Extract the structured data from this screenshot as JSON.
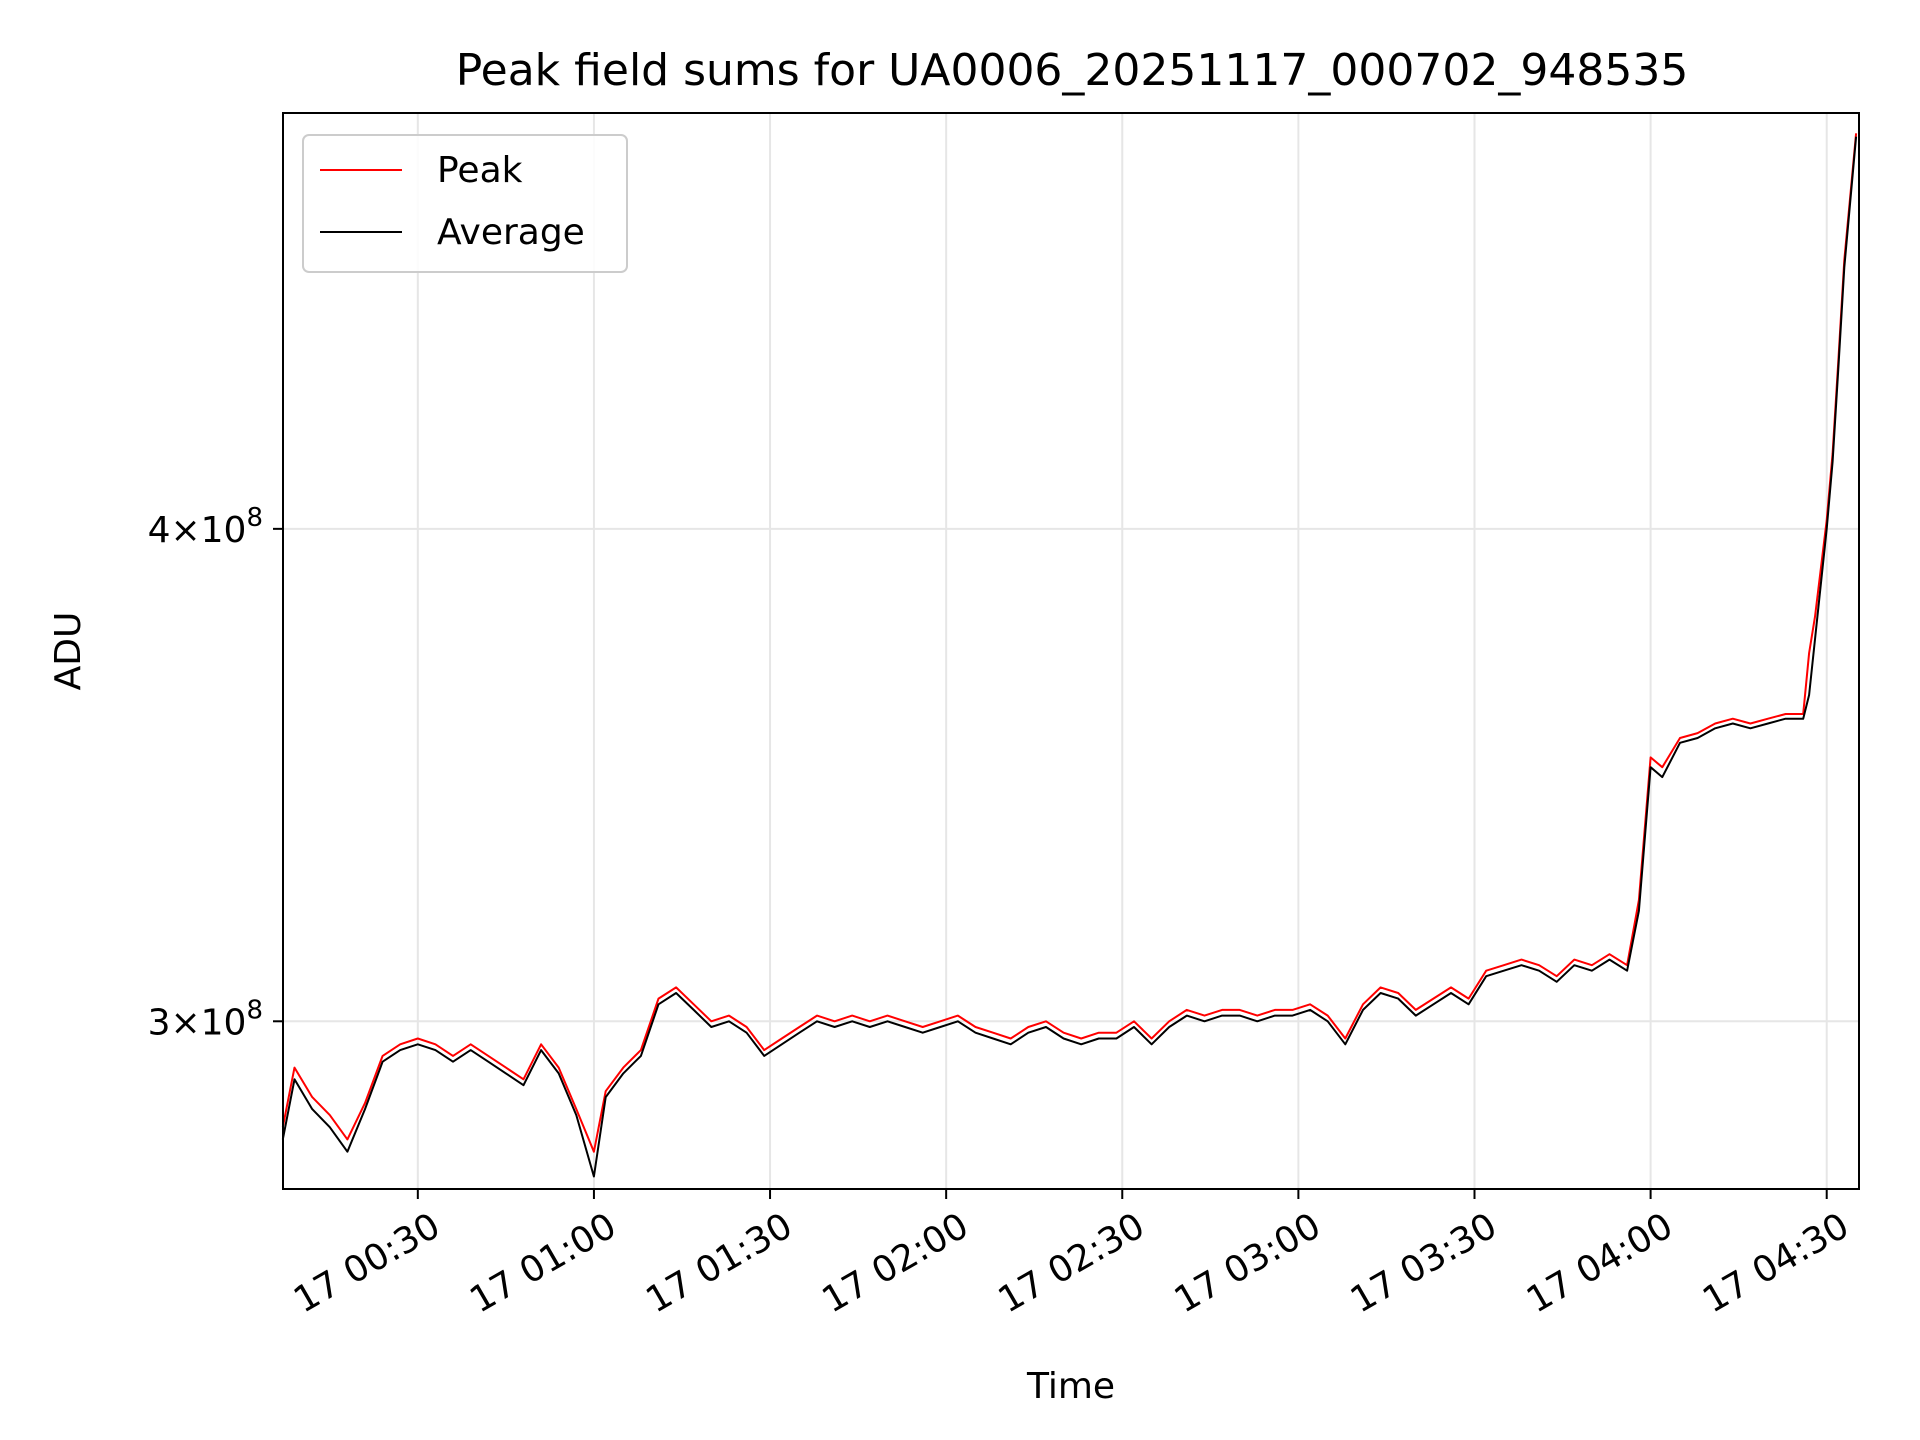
{
  "chart_data": {
    "type": "line",
    "title": "Peak field sums for UA0006_20251117_000702_948535",
    "xlabel": "Time",
    "ylabel": "ADU",
    "y_scale": "log",
    "ylim": [
      272000000,
      510000000
    ],
    "y_ticks": [
      {
        "value": 300000000,
        "mantissa": "3",
        "exponent": "8"
      },
      {
        "value": 400000000,
        "mantissa": "4",
        "exponent": "8"
      }
    ],
    "xlim": [
      "2025-11-17 00:07:02",
      "2025-11-17 04:35:30"
    ],
    "x_ticks": [
      {
        "time": "2025-11-17 00:30",
        "label": "17 00:30"
      },
      {
        "time": "2025-11-17 01:00",
        "label": "17 01:00"
      },
      {
        "time": "2025-11-17 01:30",
        "label": "17 01:30"
      },
      {
        "time": "2025-11-17 02:00",
        "label": "17 02:00"
      },
      {
        "time": "2025-11-17 02:30",
        "label": "17 02:30"
      },
      {
        "time": "2025-11-17 03:00",
        "label": "17 03:00"
      },
      {
        "time": "2025-11-17 03:30",
        "label": "17 03:30"
      },
      {
        "time": "2025-11-17 04:00",
        "label": "17 04:00"
      },
      {
        "time": "2025-11-17 04:30",
        "label": "17 04:30"
      }
    ],
    "grid": true,
    "legend": {
      "position": "top-left"
    },
    "series": [
      {
        "name": "Peak",
        "color": "#ff0000",
        "points": [
          [
            "2025-11-17 00:07",
            282000000.0
          ],
          [
            "2025-11-17 00:09",
            292000000.0
          ],
          [
            "2025-11-17 00:12",
            287000000.0
          ],
          [
            "2025-11-17 00:15",
            284000000.0
          ],
          [
            "2025-11-17 00:18",
            280000000.0
          ],
          [
            "2025-11-17 00:21",
            286000000.0
          ],
          [
            "2025-11-17 00:24",
            294000000.0
          ],
          [
            "2025-11-17 00:27",
            296000000.0
          ],
          [
            "2025-11-17 00:30",
            297000000.0
          ],
          [
            "2025-11-17 00:33",
            296000000.0
          ],
          [
            "2025-11-17 00:36",
            294000000.0
          ],
          [
            "2025-11-17 00:39",
            296000000.0
          ],
          [
            "2025-11-17 00:42",
            294000000.0
          ],
          [
            "2025-11-17 00:45",
            292000000.0
          ],
          [
            "2025-11-17 00:48",
            290000000.0
          ],
          [
            "2025-11-17 00:51",
            296000000.0
          ],
          [
            "2025-11-17 00:54",
            292000000.0
          ],
          [
            "2025-11-17 00:57",
            285000000.0
          ],
          [
            "2025-11-17 01:00",
            278000000.0
          ],
          [
            "2025-11-17 01:02",
            288000000.0
          ],
          [
            "2025-11-17 01:05",
            292000000.0
          ],
          [
            "2025-11-17 01:08",
            295000000.0
          ],
          [
            "2025-11-17 01:11",
            304000000.0
          ],
          [
            "2025-11-17 01:14",
            306000000.0
          ],
          [
            "2025-11-17 01:17",
            303000000.0
          ],
          [
            "2025-11-17 01:20",
            300000000.0
          ],
          [
            "2025-11-17 01:23",
            301000000.0
          ],
          [
            "2025-11-17 01:26",
            299000000.0
          ],
          [
            "2025-11-17 01:29",
            295000000.0
          ],
          [
            "2025-11-17 01:32",
            297000000.0
          ],
          [
            "2025-11-17 01:35",
            299000000.0
          ],
          [
            "2025-11-17 01:38",
            301000000.0
          ],
          [
            "2025-11-17 01:41",
            300000000.0
          ],
          [
            "2025-11-17 01:44",
            301000000.0
          ],
          [
            "2025-11-17 01:47",
            300000000.0
          ],
          [
            "2025-11-17 01:50",
            301000000.0
          ],
          [
            "2025-11-17 01:53",
            300000000.0
          ],
          [
            "2025-11-17 01:56",
            299000000.0
          ],
          [
            "2025-11-17 01:59",
            300000000.0
          ],
          [
            "2025-11-17 02:02",
            301000000.0
          ],
          [
            "2025-11-17 02:05",
            299000000.0
          ],
          [
            "2025-11-17 02:08",
            298000000.0
          ],
          [
            "2025-11-17 02:11",
            297000000.0
          ],
          [
            "2025-11-17 02:14",
            299000000.0
          ],
          [
            "2025-11-17 02:17",
            300000000.0
          ],
          [
            "2025-11-17 02:20",
            298000000.0
          ],
          [
            "2025-11-17 02:23",
            297000000.0
          ],
          [
            "2025-11-17 02:26",
            298000000.0
          ],
          [
            "2025-11-17 02:29",
            298000000.0
          ],
          [
            "2025-11-17 02:32",
            300000000.0
          ],
          [
            "2025-11-17 02:35",
            297000000.0
          ],
          [
            "2025-11-17 02:38",
            300000000.0
          ],
          [
            "2025-11-17 02:41",
            302000000.0
          ],
          [
            "2025-11-17 02:44",
            301000000.0
          ],
          [
            "2025-11-17 02:47",
            302000000.0
          ],
          [
            "2025-11-17 02:50",
            302000000.0
          ],
          [
            "2025-11-17 02:53",
            301000000.0
          ],
          [
            "2025-11-17 02:56",
            302000000.0
          ],
          [
            "2025-11-17 02:59",
            302000000.0
          ],
          [
            "2025-11-17 03:02",
            303000000.0
          ],
          [
            "2025-11-17 03:05",
            301000000.0
          ],
          [
            "2025-11-17 03:08",
            297000000.0
          ],
          [
            "2025-11-17 03:11",
            303000000.0
          ],
          [
            "2025-11-17 03:14",
            306000000.0
          ],
          [
            "2025-11-17 03:17",
            305000000.0
          ],
          [
            "2025-11-17 03:20",
            302000000.0
          ],
          [
            "2025-11-17 03:23",
            304000000.0
          ],
          [
            "2025-11-17 03:26",
            306000000.0
          ],
          [
            "2025-11-17 03:29",
            304000000.0
          ],
          [
            "2025-11-17 03:32",
            309000000.0
          ],
          [
            "2025-11-17 03:35",
            310000000.0
          ],
          [
            "2025-11-17 03:38",
            311000000.0
          ],
          [
            "2025-11-17 03:41",
            310000000.0
          ],
          [
            "2025-11-17 03:44",
            308000000.0
          ],
          [
            "2025-11-17 03:47",
            311000000.0
          ],
          [
            "2025-11-17 03:50",
            310000000.0
          ],
          [
            "2025-11-17 03:53",
            312000000.0
          ],
          [
            "2025-11-17 03:56",
            310000000.0
          ],
          [
            "2025-11-17 03:58",
            322000000.0
          ],
          [
            "2025-11-17 04:00",
            350000000.0
          ],
          [
            "2025-11-17 04:02",
            348000000.0
          ],
          [
            "2025-11-17 04:05",
            354000000.0
          ],
          [
            "2025-11-17 04:08",
            355000000.0
          ],
          [
            "2025-11-17 04:11",
            357000000.0
          ],
          [
            "2025-11-17 04:14",
            358000000.0
          ],
          [
            "2025-11-17 04:17",
            357000000.0
          ],
          [
            "2025-11-17 04:20",
            358000000.0
          ],
          [
            "2025-11-17 04:23",
            359000000.0
          ],
          [
            "2025-11-17 04:26",
            359000000.0
          ],
          [
            "2025-11-17 04:27",
            372000000.0
          ],
          [
            "2025-11-17 04:28",
            380000000.0
          ],
          [
            "2025-11-17 04:30",
            402000000.0
          ],
          [
            "2025-11-17 04:31",
            418000000.0
          ],
          [
            "2025-11-17 04:32",
            442000000.0
          ],
          [
            "2025-11-17 04:33",
            468000000.0
          ],
          [
            "2025-11-17 04:35",
            504000000.0
          ]
        ]
      },
      {
        "name": "Average",
        "color": "#000000",
        "points": [
          [
            "2025-11-17 00:07",
            280000000.0
          ],
          [
            "2025-11-17 00:09",
            290000000.0
          ],
          [
            "2025-11-17 00:12",
            285000000.0
          ],
          [
            "2025-11-17 00:15",
            282000000.0
          ],
          [
            "2025-11-17 00:18",
            278000000.0
          ],
          [
            "2025-11-17 00:21",
            285000000.0
          ],
          [
            "2025-11-17 00:24",
            293000000.0
          ],
          [
            "2025-11-17 00:27",
            295000000.0
          ],
          [
            "2025-11-17 00:30",
            296000000.0
          ],
          [
            "2025-11-17 00:33",
            295000000.0
          ],
          [
            "2025-11-17 00:36",
            293000000.0
          ],
          [
            "2025-11-17 00:39",
            295000000.0
          ],
          [
            "2025-11-17 00:42",
            293000000.0
          ],
          [
            "2025-11-17 00:45",
            291000000.0
          ],
          [
            "2025-11-17 00:48",
            289000000.0
          ],
          [
            "2025-11-17 00:51",
            295000000.0
          ],
          [
            "2025-11-17 00:54",
            291000000.0
          ],
          [
            "2025-11-17 00:57",
            284000000.0
          ],
          [
            "2025-11-17 01:00",
            274000000.0
          ],
          [
            "2025-11-17 01:02",
            287000000.0
          ],
          [
            "2025-11-17 01:05",
            291000000.0
          ],
          [
            "2025-11-17 01:08",
            294000000.0
          ],
          [
            "2025-11-17 01:11",
            303000000.0
          ],
          [
            "2025-11-17 01:14",
            305000000.0
          ],
          [
            "2025-11-17 01:17",
            302000000.0
          ],
          [
            "2025-11-17 01:20",
            299000000.0
          ],
          [
            "2025-11-17 01:23",
            300000000.0
          ],
          [
            "2025-11-17 01:26",
            298000000.0
          ],
          [
            "2025-11-17 01:29",
            294000000.0
          ],
          [
            "2025-11-17 01:32",
            296000000.0
          ],
          [
            "2025-11-17 01:35",
            298000000.0
          ],
          [
            "2025-11-17 01:38",
            300000000.0
          ],
          [
            "2025-11-17 01:41",
            299000000.0
          ],
          [
            "2025-11-17 01:44",
            300000000.0
          ],
          [
            "2025-11-17 01:47",
            299000000.0
          ],
          [
            "2025-11-17 01:50",
            300000000.0
          ],
          [
            "2025-11-17 01:53",
            299000000.0
          ],
          [
            "2025-11-17 01:56",
            298000000.0
          ],
          [
            "2025-11-17 01:59",
            299000000.0
          ],
          [
            "2025-11-17 02:02",
            300000000.0
          ],
          [
            "2025-11-17 02:05",
            298000000.0
          ],
          [
            "2025-11-17 02:08",
            297000000.0
          ],
          [
            "2025-11-17 02:11",
            296000000.0
          ],
          [
            "2025-11-17 02:14",
            298000000.0
          ],
          [
            "2025-11-17 02:17",
            299000000.0
          ],
          [
            "2025-11-17 02:20",
            297000000.0
          ],
          [
            "2025-11-17 02:23",
            296000000.0
          ],
          [
            "2025-11-17 02:26",
            297000000.0
          ],
          [
            "2025-11-17 02:29",
            297000000.0
          ],
          [
            "2025-11-17 02:32",
            299000000.0
          ],
          [
            "2025-11-17 02:35",
            296000000.0
          ],
          [
            "2025-11-17 02:38",
            299000000.0
          ],
          [
            "2025-11-17 02:41",
            301000000.0
          ],
          [
            "2025-11-17 02:44",
            300000000.0
          ],
          [
            "2025-11-17 02:47",
            301000000.0
          ],
          [
            "2025-11-17 02:50",
            301000000.0
          ],
          [
            "2025-11-17 02:53",
            300000000.0
          ],
          [
            "2025-11-17 02:56",
            301000000.0
          ],
          [
            "2025-11-17 02:59",
            301000000.0
          ],
          [
            "2025-11-17 03:02",
            302000000.0
          ],
          [
            "2025-11-17 03:05",
            300000000.0
          ],
          [
            "2025-11-17 03:08",
            296000000.0
          ],
          [
            "2025-11-17 03:11",
            302000000.0
          ],
          [
            "2025-11-17 03:14",
            305000000.0
          ],
          [
            "2025-11-17 03:17",
            304000000.0
          ],
          [
            "2025-11-17 03:20",
            301000000.0
          ],
          [
            "2025-11-17 03:23",
            303000000.0
          ],
          [
            "2025-11-17 03:26",
            305000000.0
          ],
          [
            "2025-11-17 03:29",
            303000000.0
          ],
          [
            "2025-11-17 03:32",
            308000000.0
          ],
          [
            "2025-11-17 03:35",
            309000000.0
          ],
          [
            "2025-11-17 03:38",
            310000000.0
          ],
          [
            "2025-11-17 03:41",
            309000000.0
          ],
          [
            "2025-11-17 03:44",
            307000000.0
          ],
          [
            "2025-11-17 03:47",
            310000000.0
          ],
          [
            "2025-11-17 03:50",
            309000000.0
          ],
          [
            "2025-11-17 03:53",
            311000000.0
          ],
          [
            "2025-11-17 03:56",
            309000000.0
          ],
          [
            "2025-11-17 03:58",
            320000000.0
          ],
          [
            "2025-11-17 04:00",
            348000000.0
          ],
          [
            "2025-11-17 04:02",
            346000000.0
          ],
          [
            "2025-11-17 04:05",
            353000000.0
          ],
          [
            "2025-11-17 04:08",
            354000000.0
          ],
          [
            "2025-11-17 04:11",
            356000000.0
          ],
          [
            "2025-11-17 04:14",
            357000000.0
          ],
          [
            "2025-11-17 04:17",
            356000000.0
          ],
          [
            "2025-11-17 04:20",
            357000000.0
          ],
          [
            "2025-11-17 04:23",
            358000000.0
          ],
          [
            "2025-11-17 04:26",
            358000000.0
          ],
          [
            "2025-11-17 04:27",
            363000000.0
          ],
          [
            "2025-11-17 04:28",
            375000000.0
          ],
          [
            "2025-11-17 04:30",
            400000000.0
          ],
          [
            "2025-11-17 04:31",
            416000000.0
          ],
          [
            "2025-11-17 04:32",
            440000000.0
          ],
          [
            "2025-11-17 04:33",
            466000000.0
          ],
          [
            "2025-11-17 04:35",
            503000000.0
          ]
        ]
      }
    ]
  }
}
